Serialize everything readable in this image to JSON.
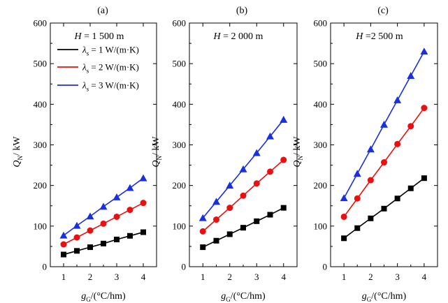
{
  "chart_data": [
    {
      "type": "line",
      "panel_label": "(a)",
      "annotation_symbol": "H",
      "annotation_value": " = 1 500 m",
      "x_axis_label": "g",
      "x_axis_sub": "G",
      "x_axis_unit": "/(°C/hm)",
      "y_axis_label": "Q",
      "y_axis_sub": "N",
      "y_axis_unit": "/ kW",
      "xlim": [
        0.5,
        4.5
      ],
      "ylim": [
        0,
        600
      ],
      "xticks": [
        1,
        2,
        3,
        4
      ],
      "yticks": [
        0,
        100,
        200,
        300,
        400,
        500,
        600
      ],
      "grid": false,
      "legend_position": "top-right",
      "x": [
        1,
        1.5,
        2,
        2.5,
        3,
        3.5,
        4
      ],
      "series": [
        {
          "name": "λ_s = 1 W/(m·K)",
          "symbol": "λ",
          "symbol_sub": "s",
          "value": " = 1 W/(m·K)",
          "color": "#000000",
          "marker": "square",
          "values": [
            30,
            39,
            48,
            57,
            67,
            76,
            85
          ]
        },
        {
          "name": "λ_s = 2 W/(m·K)",
          "symbol": "λ",
          "symbol_sub": "s",
          "value": " = 2 W/(m·K)",
          "color": "#e81010",
          "marker": "circle",
          "values": [
            55,
            72,
            89,
            106,
            123,
            140,
            157
          ]
        },
        {
          "name": "λ_s = 3 W/(m·K)",
          "symbol": "λ",
          "symbol_sub": "s",
          "value": " = 3 W/(m·K)",
          "color": "#1a2fe0",
          "marker": "triangle",
          "values": [
            77,
            101,
            124,
            148,
            171,
            194,
            218
          ]
        }
      ]
    },
    {
      "type": "line",
      "panel_label": "(b)",
      "annotation_symbol": "H",
      "annotation_value": " = 2 000 m",
      "x_axis_label": "g",
      "x_axis_sub": "G",
      "x_axis_unit": "/(°C/hm)",
      "y_axis_label": "Q",
      "y_axis_sub": "N",
      "y_axis_unit": "/ kW",
      "xlim": [
        0.5,
        4.5
      ],
      "ylim": [
        0,
        600
      ],
      "xticks": [
        1,
        2,
        3,
        4
      ],
      "yticks": [
        0,
        100,
        200,
        300,
        400,
        500,
        600
      ],
      "grid": false,
      "x": [
        1,
        1.5,
        2,
        2.5,
        3,
        3.5,
        4
      ],
      "series": [
        {
          "name": "λ_s = 1 W/(m·K)",
          "color": "#000000",
          "marker": "square",
          "values": [
            48,
            64,
            80,
            96,
            112,
            128,
            145
          ]
        },
        {
          "name": "λ_s = 2 W/(m·K)",
          "color": "#e81010",
          "marker": "circle",
          "values": [
            87,
            116,
            145,
            175,
            205,
            234,
            263
          ]
        },
        {
          "name": "λ_s = 3 W/(m·K)",
          "color": "#1a2fe0",
          "marker": "triangle",
          "values": [
            120,
            160,
            200,
            240,
            280,
            321,
            362
          ]
        }
      ]
    },
    {
      "type": "line",
      "panel_label": "(c)",
      "annotation_symbol": "H",
      "annotation_value": " =2 500 m",
      "x_axis_label": "g",
      "x_axis_sub": "G",
      "x_axis_unit": "/(°C/hm)",
      "y_axis_label": "Q",
      "y_axis_sub": "N",
      "y_axis_unit": "/ kW",
      "xlim": [
        0.5,
        4.5
      ],
      "ylim": [
        0,
        600
      ],
      "xticks": [
        1,
        2,
        3,
        4
      ],
      "yticks": [
        0,
        100,
        200,
        300,
        400,
        500,
        600
      ],
      "grid": false,
      "x": [
        1,
        1.5,
        2,
        2.5,
        3,
        3.5,
        4
      ],
      "series": [
        {
          "name": "λ_s = 1 W/(m·K)",
          "color": "#000000",
          "marker": "square",
          "values": [
            70,
            95,
            119,
            143,
            168,
            193,
            218
          ]
        },
        {
          "name": "λ_s = 2 W/(m·K)",
          "color": "#e81010",
          "marker": "circle",
          "values": [
            123,
            168,
            213,
            257,
            302,
            346,
            391
          ]
        },
        {
          "name": "λ_s = 3 W/(m·K)",
          "color": "#1a2fe0",
          "marker": "triangle",
          "values": [
            169,
            229,
            289,
            350,
            410,
            470,
            530
          ]
        }
      ]
    }
  ]
}
